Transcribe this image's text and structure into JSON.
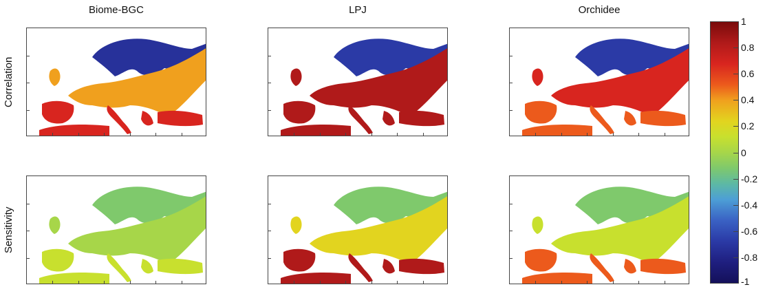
{
  "columns": [
    "Biome-BGC",
    "LPJ",
    "Orchidee"
  ],
  "rows": [
    "Correlation",
    "Sensitivity"
  ],
  "colorbar": {
    "ticks": [
      "1",
      "0.8",
      "0.6",
      "0.4",
      "0.2",
      "0",
      "-0.2",
      "-0.4",
      "-0.6",
      "-0.8",
      "-1"
    ],
    "colormap": "jet",
    "colors": {
      "max": "#7a0b0b",
      "high": "#d8251f",
      "mid": "#a7d649",
      "low": "#2b3aa6",
      "min": "#14105a"
    }
  },
  "maps": [
    {
      "row": "Correlation",
      "column": "Biome-BGC",
      "north": "#27319a",
      "central": "#f0a01e",
      "south": "#d8251f"
    },
    {
      "row": "Correlation",
      "column": "LPJ",
      "north": "#2b3aa6",
      "central": "#b01a1a",
      "south": "#b01a1a"
    },
    {
      "row": "Correlation",
      "column": "Orchidee",
      "north": "#2b3aa6",
      "central": "#d8251f",
      "south": "#ec5a1c"
    },
    {
      "row": "Sensitivity",
      "column": "Biome-BGC",
      "north": "#7fc96c",
      "central": "#a7d649",
      "south": "#c8e02e"
    },
    {
      "row": "Sensitivity",
      "column": "LPJ",
      "north": "#7fc96c",
      "central": "#e2d41f",
      "south": "#b01a1a"
    },
    {
      "row": "Sensitivity",
      "column": "Orchidee",
      "north": "#7fc96c",
      "central": "#c8e02e",
      "south": "#ec5a1c"
    }
  ]
}
